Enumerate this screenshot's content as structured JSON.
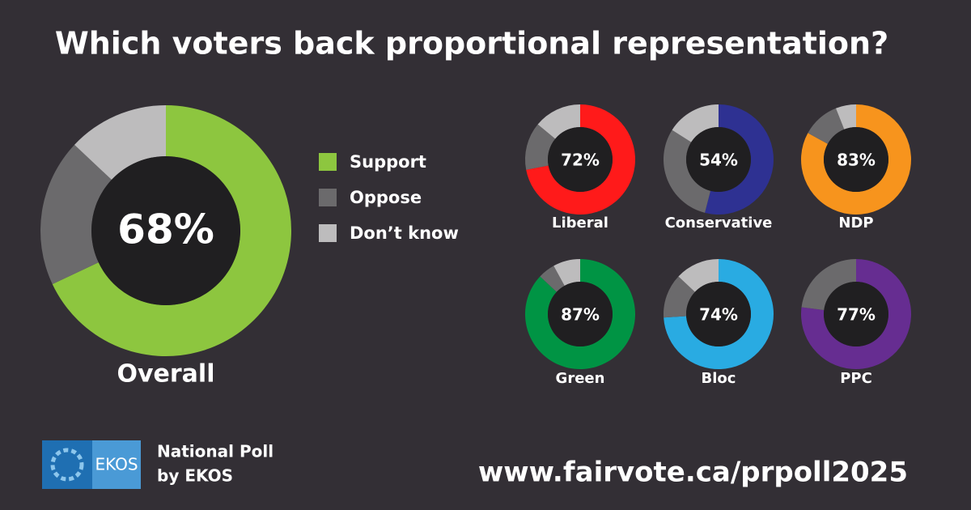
{
  "title": "Which voters back proportional representation?",
  "logo": "EKOS",
  "source": [
    "National Poll",
    "by EKOS"
  ],
  "url": "www.fairvote.ca/prpoll2025",
  "chart_data": [
    {
      "type": "donut",
      "label": "Overall",
      "center_label": "68%",
      "categories": [
        "Support",
        "Oppose",
        "Don’t know"
      ],
      "values": [
        68,
        19,
        13
      ],
      "colors": [
        "#8dc63f",
        "#6b6a6c",
        "#bdbcbd"
      ]
    },
    {
      "type": "donut",
      "label": "Liberal",
      "center_label": "72%",
      "values": [
        72,
        14,
        14
      ],
      "colors": [
        "#ff1a1a",
        "#6b6a6c",
        "#bdbcbd"
      ]
    },
    {
      "type": "donut",
      "label": "Conservative",
      "center_label": "54%",
      "values": [
        54,
        30,
        16
      ],
      "colors": [
        "#2e3192",
        "#6b6a6c",
        "#bdbcbd"
      ]
    },
    {
      "type": "donut",
      "label": "NDP",
      "center_label": "83%",
      "values": [
        83,
        11,
        6
      ],
      "colors": [
        "#f7941d",
        "#6b6a6c",
        "#bdbcbd"
      ]
    },
    {
      "type": "donut",
      "label": "Green",
      "center_label": "87%",
      "values": [
        87,
        5,
        8
      ],
      "colors": [
        "#009444",
        "#6b6a6c",
        "#bdbcbd"
      ]
    },
    {
      "type": "donut",
      "label": "Bloc",
      "center_label": "74%",
      "values": [
        74,
        13,
        13
      ],
      "colors": [
        "#29abe2",
        "#6b6a6c",
        "#bdbcbd"
      ]
    },
    {
      "type": "donut",
      "label": "PPC",
      "center_label": "77%",
      "values": [
        77,
        23,
        0
      ],
      "colors": [
        "#662d91",
        "#6b6a6c",
        "#bdbcbd"
      ]
    }
  ]
}
